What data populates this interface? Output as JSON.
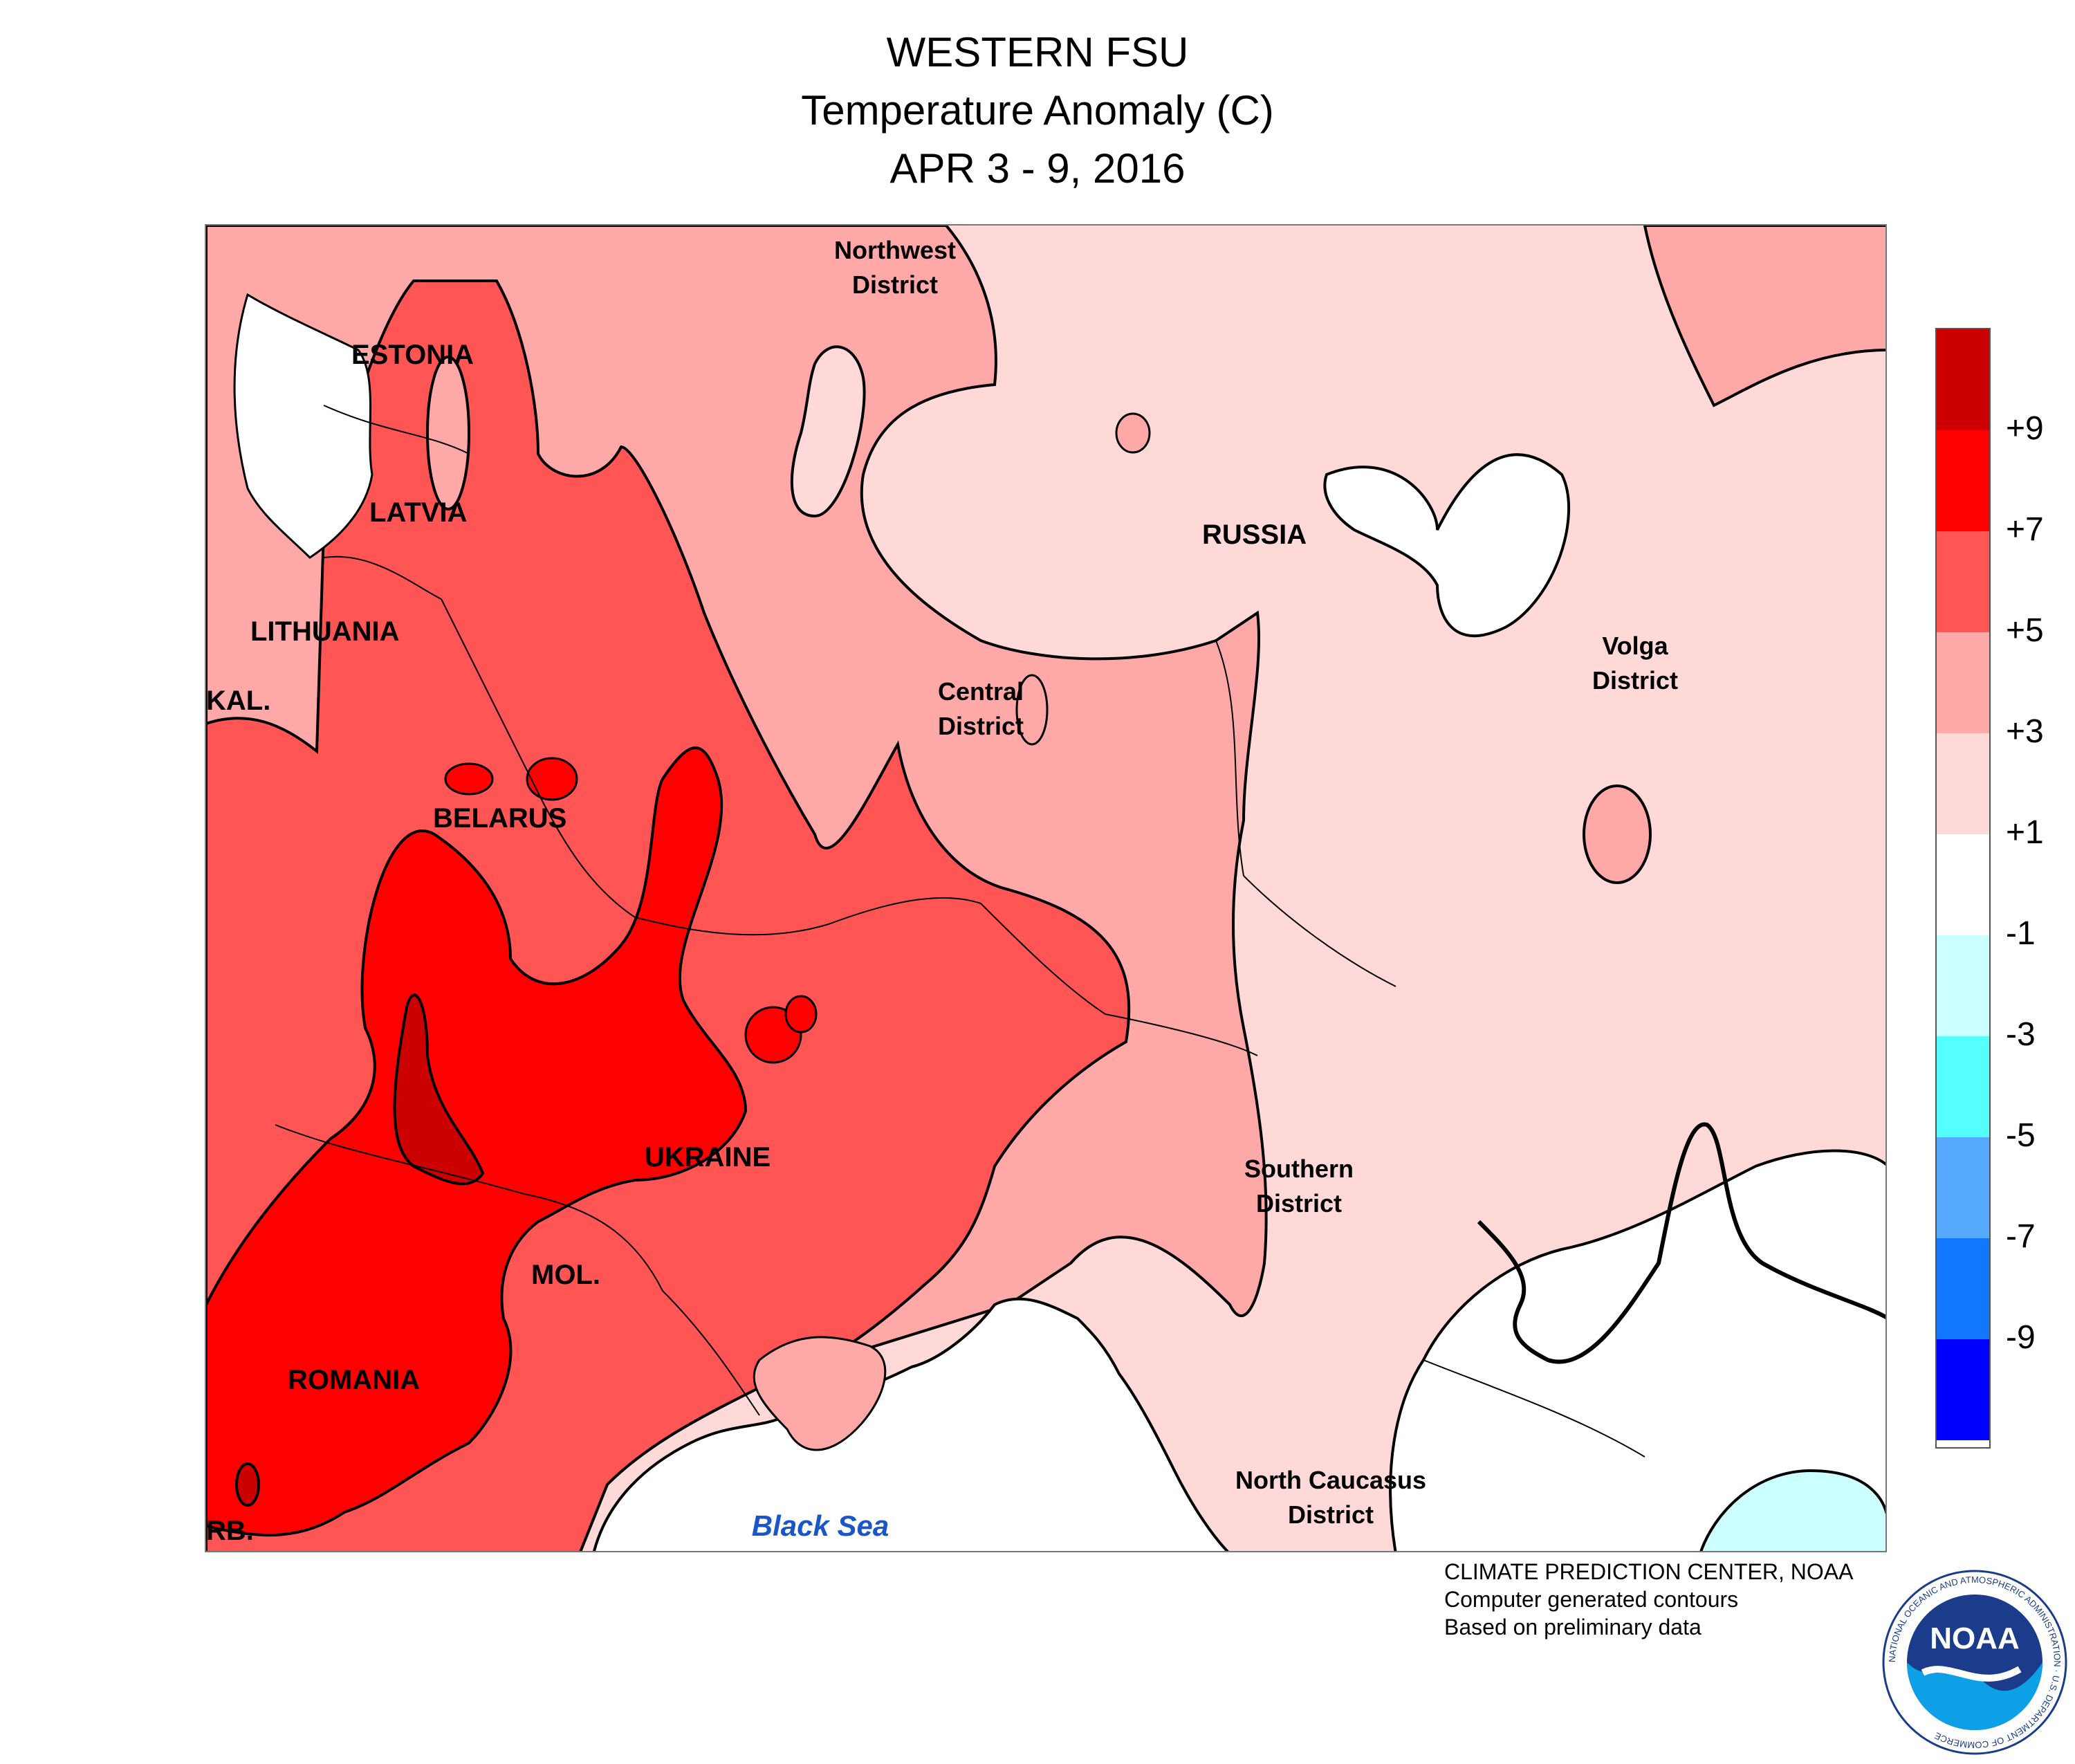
{
  "header": {
    "title": "WESTERN FSU",
    "subtitle": "Temperature Anomaly (C)",
    "period": "APR 3 - 9, 2016"
  },
  "map": {
    "labels": {
      "estonia": "ESTONIA",
      "latvia": "LATVIA",
      "lithuania": "LITHUANIA",
      "kaliningrad": "KAL.",
      "belarus": "BELARUS",
      "ukraine": "UKRAINE",
      "moldova": "MOL.",
      "romania": "ROMANIA",
      "serbia": "RB.",
      "russia": "RUSSIA",
      "black_sea": "Black Sea",
      "northwest_district": [
        "Northwest",
        "District"
      ],
      "central_district": [
        "Central",
        "District"
      ],
      "volga_district": [
        "Volga",
        "District"
      ],
      "southern_district": [
        "Southern",
        "District"
      ],
      "north_caucasus_district": [
        "North Caucasus",
        "District"
      ]
    }
  },
  "legend": {
    "bins": [
      {
        "range": "> +9",
        "color": "#cc0000"
      },
      {
        "range": "+7 to +9",
        "color": "#ff0000"
      },
      {
        "range": "+5 to +7",
        "color": "#ff5555"
      },
      {
        "range": "+3 to +5",
        "color": "#ffa8a8"
      },
      {
        "range": "+1 to +3",
        "color": "#ffd8d8"
      },
      {
        "range": "-1 to +1",
        "color": "#ffffff"
      },
      {
        "range": "-3 to -1",
        "color": "#ccffff"
      },
      {
        "range": "-5 to -3",
        "color": "#55ffff"
      },
      {
        "range": "-7 to -5",
        "color": "#55aaff"
      },
      {
        "range": "-9 to -7",
        "color": "#1177ff"
      },
      {
        "range": "< -9",
        "color": "#0000ff"
      }
    ],
    "tick_labels": [
      "+9",
      "+7",
      "+5",
      "+3",
      "+1",
      "-1",
      "-3",
      "-5",
      "-7",
      "-9"
    ]
  },
  "credit": {
    "line1": "CLIMATE PREDICTION CENTER, NOAA",
    "line2": "Computer generated contours",
    "line3": "Based on preliminary data"
  },
  "logo": {
    "text": "NOAA",
    "ring_text": "NATIONAL OCEANIC AND ATMOSPHERIC ADMINISTRATION · U.S. DEPARTMENT OF COMMERCE"
  }
}
